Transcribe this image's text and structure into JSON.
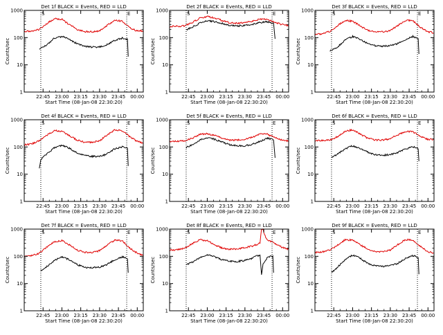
{
  "colors": {
    "events": "#000000",
    "lld": "#e00000",
    "axes": "#000000",
    "background": "#ffffff"
  },
  "chart_data": [
    {
      "type": "line",
      "title": "Det 1f BLACK = Events, RED = LLD",
      "xlabel": "Start Time (08-Jan-08 22:30:20)",
      "ylabel": "Counts/sec",
      "ylog": true,
      "ylim": [
        1,
        1000
      ],
      "xlim": [
        22.5,
        24.08
      ],
      "x_ticks": [
        "22:45",
        "23:00",
        "23:15",
        "23:30",
        "23:45",
        "00:00"
      ],
      "y_ticks": [
        "1",
        "10",
        "100",
        "1000"
      ],
      "markers": [
        "S",
        "E"
      ],
      "marker_times": [
        22.72,
        23.86
      ],
      "series": [
        {
          "name": "LLD",
          "x": [
            22.5,
            22.6,
            22.7,
            22.8,
            22.9,
            23.0,
            23.1,
            23.2,
            23.3,
            23.4,
            23.5,
            23.6,
            23.7,
            23.8,
            23.9,
            24.0,
            24.08
          ],
          "y": [
            170,
            170,
            200,
            330,
            500,
            470,
            300,
            200,
            165,
            165,
            175,
            280,
            430,
            400,
            230,
            175,
            180
          ]
        },
        {
          "name": "Events",
          "x": [
            22.7,
            22.8,
            22.9,
            23.0,
            23.1,
            23.2,
            23.3,
            23.4,
            23.5,
            23.6,
            23.7,
            23.8,
            23.87,
            23.88
          ],
          "y": [
            38,
            55,
            95,
            110,
            85,
            60,
            48,
            45,
            45,
            55,
            80,
            95,
            85,
            20
          ]
        }
      ]
    },
    {
      "type": "line",
      "title": "Det 2f BLACK = Events, RED = LLD",
      "xlabel": "Start Time (08-Jan-08 22:30:20)",
      "ylabel": "Counts/sec",
      "ylog": true,
      "ylim": [
        1,
        1000
      ],
      "xlim": [
        22.5,
        24.08
      ],
      "x_ticks": [
        "22:45",
        "23:00",
        "23:15",
        "23:30",
        "23:45",
        "00:00"
      ],
      "y_ticks": [
        "1",
        "10",
        "100",
        "1000"
      ],
      "markers": [
        "S",
        "E"
      ],
      "marker_times": [
        22.72,
        23.86
      ],
      "series": [
        {
          "name": "LLD",
          "x": [
            22.5,
            22.6,
            22.7,
            22.8,
            22.9,
            23.0,
            23.1,
            23.2,
            23.3,
            23.4,
            23.5,
            23.6,
            23.7,
            23.8,
            23.9,
            24.0,
            24.08
          ],
          "y": [
            260,
            260,
            270,
            360,
            520,
            600,
            520,
            420,
            350,
            340,
            350,
            400,
            480,
            460,
            360,
            300,
            280
          ]
        },
        {
          "name": "Events",
          "x": [
            22.72,
            22.8,
            22.9,
            23.0,
            23.1,
            23.2,
            23.3,
            23.4,
            23.5,
            23.6,
            23.7,
            23.8,
            23.88,
            23.9
          ],
          "y": [
            190,
            240,
            340,
            420,
            380,
            330,
            280,
            270,
            280,
            300,
            360,
            380,
            330,
            90
          ]
        }
      ]
    },
    {
      "type": "line",
      "title": "Det 3f BLACK = Events, RED = LLD",
      "xlabel": "Start Time (08-Jan-08 22:30:20)",
      "ylabel": "Counts/sec",
      "ylog": true,
      "ylim": [
        1,
        1000
      ],
      "xlim": [
        22.5,
        24.08
      ],
      "x_ticks": [
        "22:45",
        "23:00",
        "23:15",
        "23:30",
        "23:45",
        "00:00"
      ],
      "y_ticks": [
        "1",
        "10",
        "100",
        "1000"
      ],
      "markers": [
        "S",
        "E"
      ],
      "marker_times": [
        22.72,
        23.86
      ],
      "series": [
        {
          "name": "LLD",
          "x": [
            22.5,
            22.6,
            22.7,
            22.8,
            22.9,
            23.0,
            23.1,
            23.2,
            23.3,
            23.4,
            23.5,
            23.6,
            23.7,
            23.8,
            23.9,
            24.0,
            24.08
          ],
          "y": [
            130,
            140,
            170,
            280,
            430,
            400,
            270,
            185,
            160,
            165,
            180,
            280,
            430,
            420,
            240,
            165,
            150
          ]
        },
        {
          "name": "Events",
          "x": [
            22.7,
            22.8,
            22.9,
            23.0,
            23.1,
            23.2,
            23.3,
            23.4,
            23.5,
            23.6,
            23.7,
            23.8,
            23.87,
            23.88
          ],
          "y": [
            32,
            45,
            80,
            110,
            85,
            60,
            50,
            48,
            50,
            60,
            85,
            110,
            90,
            25
          ]
        }
      ]
    },
    {
      "type": "line",
      "title": "Det 4f BLACK = Events, RED = LLD",
      "xlabel": "Start Time (08-Jan-08 22:30:20)",
      "ylabel": "Counts/sec",
      "ylog": true,
      "ylim": [
        1,
        1000
      ],
      "xlim": [
        22.5,
        24.08
      ],
      "x_ticks": [
        "22:45",
        "23:00",
        "23:15",
        "23:30",
        "23:45",
        "00:00"
      ],
      "y_ticks": [
        "1",
        "10",
        "100",
        "1000"
      ],
      "markers": [
        "S",
        "E"
      ],
      "marker_times": [
        22.72,
        23.86
      ],
      "series": [
        {
          "name": "LLD",
          "x": [
            22.5,
            22.6,
            22.7,
            22.8,
            22.9,
            23.0,
            23.1,
            23.2,
            23.3,
            23.4,
            23.5,
            23.6,
            23.7,
            23.8,
            23.9,
            24.0,
            24.08
          ],
          "y": [
            120,
            130,
            170,
            270,
            400,
            380,
            260,
            180,
            150,
            150,
            170,
            270,
            420,
            400,
            240,
            160,
            140
          ]
        },
        {
          "name": "Events",
          "x": [
            22.7,
            22.72,
            22.8,
            22.9,
            23.0,
            23.1,
            23.2,
            23.3,
            23.4,
            23.5,
            23.6,
            23.7,
            23.8,
            23.87,
            23.88
          ],
          "y": [
            16,
            35,
            55,
            95,
            115,
            90,
            60,
            50,
            45,
            45,
            55,
            85,
            100,
            90,
            20
          ]
        }
      ]
    },
    {
      "type": "line",
      "title": "Det 5f BLACK = Events, RED = LLD",
      "xlabel": "Start Time (08-Jan-08 22:30:20)",
      "ylabel": "Counts/sec",
      "ylog": true,
      "ylim": [
        1,
        1000
      ],
      "xlim": [
        22.5,
        24.08
      ],
      "x_ticks": [
        "22:45",
        "23:00",
        "23:15",
        "23:30",
        "23:45",
        "00:00"
      ],
      "y_ticks": [
        "1",
        "10",
        "100",
        "1000"
      ],
      "markers": [
        "S",
        "E"
      ],
      "marker_times": [
        22.72,
        23.86
      ],
      "series": [
        {
          "name": "LLD",
          "x": [
            22.5,
            22.6,
            22.7,
            22.8,
            22.9,
            23.0,
            23.1,
            23.2,
            23.3,
            23.4,
            23.5,
            23.6,
            23.7,
            23.8,
            23.9,
            24.0,
            24.08
          ],
          "y": [
            160,
            160,
            170,
            210,
            290,
            310,
            260,
            210,
            180,
            180,
            190,
            230,
            300,
            290,
            220,
            180,
            165
          ]
        },
        {
          "name": "Events",
          "x": [
            22.72,
            22.8,
            22.9,
            23.0,
            23.1,
            23.2,
            23.3,
            23.4,
            23.5,
            23.6,
            23.7,
            23.8,
            23.88,
            23.9
          ],
          "y": [
            95,
            120,
            180,
            220,
            190,
            150,
            120,
            110,
            110,
            125,
            160,
            210,
            180,
            40
          ]
        }
      ]
    },
    {
      "type": "line",
      "title": "Det 6f BLACK = Events, RED = LLD",
      "xlabel": "Start Time (08-Jan-08 22:30:20)",
      "ylabel": "Counts/sec",
      "ylog": true,
      "ylim": [
        1,
        1000
      ],
      "xlim": [
        22.5,
        24.08
      ],
      "x_ticks": [
        "22:45",
        "23:00",
        "23:15",
        "23:30",
        "23:45",
        "00:00"
      ],
      "y_ticks": [
        "1",
        "10",
        "100",
        "1000"
      ],
      "markers": [
        "S",
        "E"
      ],
      "marker_times": [
        22.72,
        23.86
      ],
      "series": [
        {
          "name": "LLD",
          "x": [
            22.5,
            22.6,
            22.7,
            22.8,
            22.9,
            23.0,
            23.1,
            23.2,
            23.3,
            23.4,
            23.5,
            23.6,
            23.7,
            23.8,
            23.9,
            24.0,
            24.08
          ],
          "y": [
            175,
            175,
            180,
            240,
            380,
            430,
            300,
            210,
            180,
            180,
            200,
            280,
            370,
            360,
            250,
            190,
            190
          ]
        },
        {
          "name": "Events",
          "x": [
            22.72,
            22.8,
            22.9,
            23.0,
            23.1,
            23.2,
            23.3,
            23.4,
            23.5,
            23.6,
            23.7,
            23.8,
            23.87,
            23.88
          ],
          "y": [
            40,
            55,
            85,
            110,
            85,
            65,
            52,
            50,
            52,
            62,
            85,
            100,
            90,
            30
          ]
        }
      ]
    },
    {
      "type": "line",
      "title": "Det 7f BLACK = Events, RED = LLD",
      "xlabel": "Start Time (08-Jan-08 22:30:20)",
      "ylabel": "Counts/sec",
      "ylog": true,
      "ylim": [
        1,
        1000
      ],
      "xlim": [
        22.5,
        24.08
      ],
      "x_ticks": [
        "22:45",
        "23:00",
        "23:15",
        "23:30",
        "23:45",
        "00:00"
      ],
      "y_ticks": [
        "1",
        "10",
        "100",
        "1000"
      ],
      "markers": [
        "S",
        "E"
      ],
      "marker_times": [
        22.72,
        23.86
      ],
      "series": [
        {
          "name": "LLD",
          "x": [
            22.5,
            22.6,
            22.7,
            22.8,
            22.9,
            23.0,
            23.1,
            23.2,
            23.3,
            23.4,
            23.5,
            23.6,
            23.7,
            23.8,
            23.9,
            24.0,
            24.08
          ],
          "y": [
            100,
            105,
            130,
            220,
            350,
            380,
            260,
            170,
            140,
            140,
            160,
            260,
            390,
            370,
            200,
            130,
            110
          ]
        },
        {
          "name": "Events",
          "x": [
            22.72,
            22.8,
            22.9,
            23.0,
            23.1,
            23.2,
            23.3,
            23.4,
            23.5,
            23.6,
            23.7,
            23.8,
            23.87,
            23.88
          ],
          "y": [
            30,
            42,
            70,
            95,
            75,
            50,
            40,
            38,
            40,
            50,
            75,
            95,
            85,
            25
          ]
        }
      ]
    },
    {
      "type": "line",
      "title": "Det 8f BLACK = Events, RED = LLD",
      "xlabel": "Start Time (08-Jan-08 22:30:20)",
      "ylabel": "Counts/sec",
      "ylog": true,
      "ylim": [
        1,
        1000
      ],
      "xlim": [
        22.5,
        24.08
      ],
      "x_ticks": [
        "22:45",
        "23:00",
        "23:15",
        "23:30",
        "23:45",
        "00:00"
      ],
      "y_ticks": [
        "1",
        "10",
        "100",
        "1000"
      ],
      "markers": [
        "S",
        "E"
      ],
      "marker_times": [
        22.72,
        23.86
      ],
      "series": [
        {
          "name": "LLD",
          "x": [
            22.5,
            22.6,
            22.7,
            22.8,
            22.9,
            23.0,
            23.1,
            23.2,
            23.3,
            23.4,
            23.5,
            23.6,
            23.7,
            23.72,
            23.74,
            23.76,
            23.8,
            23.9,
            24.0,
            24.08
          ],
          "y": [
            170,
            175,
            200,
            290,
            400,
            380,
            260,
            200,
            180,
            190,
            210,
            240,
            300,
            1000,
            1000,
            600,
            400,
            300,
            210,
            180
          ]
        },
        {
          "name": "Events",
          "x": [
            22.72,
            22.8,
            22.9,
            23.0,
            23.1,
            23.2,
            23.3,
            23.4,
            23.5,
            23.6,
            23.65,
            23.7,
            23.72,
            23.74,
            23.76,
            23.8,
            23.87,
            23.88
          ],
          "y": [
            50,
            60,
            90,
            115,
            95,
            75,
            65,
            65,
            70,
            85,
            100,
            110,
            20,
            55,
            60,
            95,
            100,
            25
          ]
        }
      ]
    },
    {
      "type": "line",
      "title": "Det 9f BLACK = Events, RED = LLD",
      "xlabel": "Start Time (08-Jan-08 22:30:20)",
      "ylabel": "Counts/sec",
      "ylog": true,
      "ylim": [
        1,
        1000
      ],
      "xlim": [
        22.5,
        24.08
      ],
      "x_ticks": [
        "22:45",
        "23:00",
        "23:15",
        "23:30",
        "23:45",
        "00:00"
      ],
      "y_ticks": [
        "1",
        "10",
        "100",
        "1000"
      ],
      "markers": [
        "S",
        "E"
      ],
      "marker_times": [
        22.72,
        23.86
      ],
      "series": [
        {
          "name": "LLD",
          "x": [
            22.5,
            22.6,
            22.7,
            22.8,
            22.9,
            23.0,
            23.1,
            23.2,
            23.3,
            23.4,
            23.5,
            23.6,
            23.7,
            23.8,
            23.9,
            24.0,
            24.08
          ],
          "y": [
            140,
            145,
            170,
            260,
            400,
            400,
            270,
            180,
            150,
            150,
            170,
            270,
            410,
            400,
            230,
            150,
            130
          ]
        },
        {
          "name": "Events",
          "x": [
            22.72,
            22.8,
            22.9,
            23.0,
            23.1,
            23.2,
            23.3,
            23.4,
            23.5,
            23.6,
            23.7,
            23.8,
            23.87,
            23.88
          ],
          "y": [
            25,
            40,
            75,
            110,
            85,
            55,
            45,
            42,
            45,
            55,
            85,
            105,
            90,
            22
          ]
        }
      ]
    }
  ]
}
